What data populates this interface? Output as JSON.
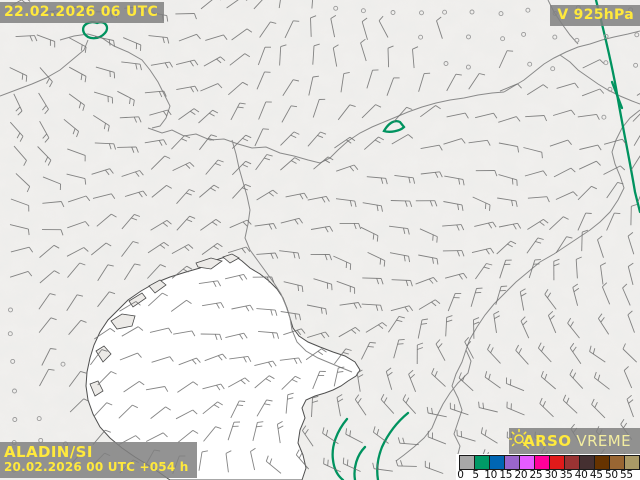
{
  "header": {
    "valid_time": "22.02.2026 06 UTC",
    "field_label": "V 925hPa"
  },
  "footer": {
    "model_name": "ALADIN/SI",
    "run_label": "20.02.2026 00 UTC +054 h"
  },
  "branding": {
    "agency_name": "ARSO",
    "product_name": "VREME",
    "icon": "sun-icon"
  },
  "legend": {
    "tick_values": [
      0,
      5,
      10,
      15,
      20,
      25,
      30,
      35,
      40,
      45,
      50,
      55
    ],
    "colors": [
      "#a8a8a8",
      "#009966",
      "#0066b3",
      "#9966cc",
      "#e55cff",
      "#ff0099",
      "#e01a1a",
      "#993333",
      "#453031",
      "#663300",
      "#996633",
      "#aa9966"
    ]
  },
  "colors": {
    "label_bg": "rgba(128,128,128,0.85)",
    "label_text": "#ffe93c",
    "contour": "#00935f",
    "barb": "#6e6e6e",
    "border": "#8a8a8a",
    "coast": "#4f4f4f",
    "land": "#f1f0ee",
    "sea": "#ffffff",
    "legend_border": "#1a1a1a",
    "tick_text": "#111111"
  },
  "wind_field": {
    "grid_spacing": 27,
    "shaft_length": 19,
    "barb_tick_length": 6,
    "calm_symbol": "small open circle",
    "description": "wind barbs on regular grid; ticks at upwind end"
  }
}
